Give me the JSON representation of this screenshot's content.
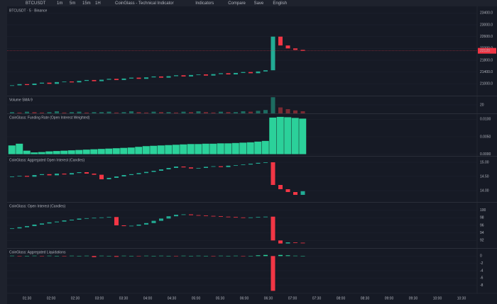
{
  "toolbar": {
    "symbol": "BTCUSDT",
    "intervals": [
      "1m",
      "5m",
      "15m",
      "1H"
    ],
    "items": [
      "CoinGlass - Technical Indicator",
      "Indicators",
      "Compare",
      "Save",
      "English"
    ]
  },
  "panes": [
    {
      "type": "candlestick",
      "title": "BTCUSDT · 5 · Binance",
      "ylim": [
        20600,
        23600
      ],
      "yticks": [
        {
          "value": 21000,
          "label": "21000.0"
        },
        {
          "value": 21400,
          "label": "21400.0"
        },
        {
          "value": 21800,
          "label": "21800.0"
        },
        {
          "value": 22200,
          "label": "22200.0"
        },
        {
          "value": 22600,
          "label": "22600.0"
        },
        {
          "value": 23000,
          "label": "23000.0"
        },
        {
          "value": 23400,
          "label": "23400.0"
        }
      ],
      "values": [
        20950,
        20990,
        20960,
        21010,
        21040,
        21000,
        21060,
        21080,
        21050,
        21100,
        21130,
        21090,
        21140,
        21170,
        21130,
        21180,
        21210,
        21170,
        21220,
        21250,
        21210,
        21260,
        21290,
        21250,
        21300,
        21320,
        21280,
        21330,
        21360,
        21320,
        21370,
        21400,
        21360,
        21420,
        21460,
        22600,
        22300,
        22200,
        22150,
        22120
      ]
    },
    {
      "type": "volume",
      "title": "Volume SMA 9",
      "ylim": [
        0,
        40
      ],
      "yticks": [
        20
      ],
      "values": [
        3,
        2,
        4,
        3,
        2,
        3,
        5,
        2,
        3,
        4,
        2,
        3,
        3,
        4,
        2,
        3,
        5,
        3,
        2,
        4,
        3,
        3,
        2,
        4,
        3,
        5,
        3,
        2,
        4,
        3,
        3,
        5,
        4,
        6,
        8,
        38,
        14,
        10,
        7,
        5
      ]
    },
    {
      "type": "bar",
      "title": "CoinGlass: Funding Rate (Open Interest Weighted)",
      "ylim": [
        -0.0005,
        0.0115
      ],
      "yticks": [
        {
          "value": 0,
          "label": "0.0000"
        },
        {
          "value": 0.005,
          "label": "0.0050"
        },
        {
          "value": 0.01,
          "label": "0.0100"
        }
      ],
      "values": [
        0.0025,
        0.003,
        0.001,
        0.0005,
        0.0006,
        0.0008,
        0.0009,
        0.001,
        0.0011,
        0.0012,
        0.0013,
        0.0014,
        0.0015,
        0.0016,
        0.0017,
        0.0018,
        0.0019,
        0.0021,
        0.0023,
        0.0024,
        0.0025,
        0.0026,
        0.0027,
        0.0028,
        0.0029,
        0.0029,
        0.003,
        0.003,
        0.0031,
        0.0031,
        0.0032,
        0.0033,
        0.0034,
        0.0036,
        0.0038,
        0.0105,
        0.0107,
        0.0106,
        0.0104,
        0.0102
      ]
    },
    {
      "type": "candlestick",
      "title": "CoinGlass: Aggregated Open Interest (Candles)",
      "ylim": [
        13.6,
        15.2
      ],
      "yticks": [
        {
          "value": 14,
          "label": "14.00"
        },
        {
          "value": 14.5,
          "label": "14.50"
        },
        {
          "value": 15,
          "label": "15.00"
        }
      ],
      "values": [
        14.5,
        14.52,
        14.49,
        14.55,
        14.58,
        14.54,
        14.6,
        14.57,
        14.62,
        14.65,
        14.6,
        14.56,
        14.4,
        14.45,
        14.5,
        14.55,
        14.58,
        14.62,
        14.66,
        14.7,
        14.75,
        14.8,
        14.85,
        14.82,
        14.78,
        14.8,
        14.84,
        14.86,
        14.83,
        14.88,
        14.9,
        14.92,
        14.95,
        14.98,
        15,
        14.2,
        14.05,
        13.95,
        13.85,
        13.98
      ]
    },
    {
      "type": "candlestick",
      "title": "CoinGlass: Open Interest (Candles)",
      "ylim": [
        90,
        102
      ],
      "yticks": [
        92,
        94,
        96,
        98,
        100
      ],
      "values": [
        95.2,
        95.5,
        95.8,
        96.2,
        96.5,
        96.8,
        97,
        97.3,
        97.5,
        97.8,
        97.9,
        98,
        98.1,
        98.2,
        96,
        95.8,
        95.9,
        96.2,
        96.6,
        97.2,
        97.8,
        98.4,
        98.8,
        98.9,
        98.7,
        98.6,
        98.5,
        98.4,
        98.3,
        98.2,
        98.1,
        98,
        98.1,
        98.2,
        98.3,
        92,
        91.2,
        91.5,
        91.4,
        91.3
      ]
    },
    {
      "type": "bar",
      "title": "CoinGlass: Aggregated Liquidations",
      "ylim": [
        -10,
        2
      ],
      "yticks": [
        0,
        -2,
        -4,
        -6,
        -8
      ],
      "values": [
        0.1,
        -0.1,
        0.05,
        0.1,
        -0.05,
        0.1,
        0.05,
        -0.1,
        0.1,
        0.05,
        0.1,
        -0.3,
        0.1,
        0.05,
        -0.2,
        0.1,
        0.05,
        -0.1,
        0.1,
        0.05,
        0.1,
        0.05,
        -0.1,
        0.1,
        0.05,
        0.1,
        0.05,
        -0.1,
        0.1,
        0.05,
        0.1,
        -0.1,
        0.05,
        0.2,
        0.3,
        -9.5,
        0.3,
        0.2,
        0.1,
        0.05
      ]
    }
  ],
  "time_axis": [
    "01:30",
    "02:00",
    "02:30",
    "03:00",
    "03:30",
    "04:00",
    "04:30",
    "05:00",
    "05:30",
    "06:00",
    "06:30",
    "07:00",
    "07:30",
    "08:00",
    "08:30",
    "09:00",
    "09:30",
    "10:00",
    "10:30"
  ]
}
